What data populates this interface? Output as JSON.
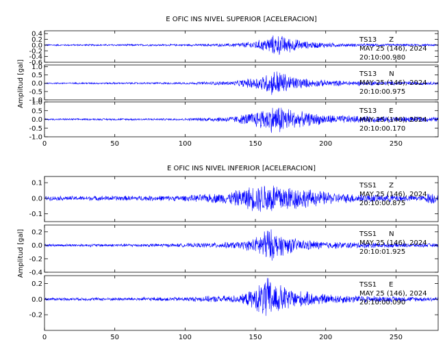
{
  "chart_data": [
    {
      "type": "line",
      "title": "E OFIC INS NIVEL SUPERIOR [ACELERACION]",
      "ylabel": "Amplitud [gal]",
      "xlabel": "",
      "xlim": [
        0,
        280
      ],
      "x_ticks": [
        "0",
        "50",
        "100",
        "150",
        "200",
        "250"
      ],
      "line_color": "#0000ff",
      "grid": false,
      "traces": [
        {
          "station": "TS13",
          "component": "Z",
          "date": "MAY 25 (146), 2024",
          "time": "20:10:00.980",
          "ylim": [
            -0.6,
            0.5
          ],
          "y_ticks": [
            "0.4",
            "0.2",
            "0.0",
            "-0.2",
            "-0.4",
            "-0.6"
          ],
          "envelope": [
            [
              0,
              0.03
            ],
            [
              100,
              0.04
            ],
            [
              130,
              0.06
            ],
            [
              145,
              0.12
            ],
            [
              155,
              0.22
            ],
            [
              165,
              0.42
            ],
            [
              172,
              0.32
            ],
            [
              185,
              0.15
            ],
            [
              210,
              0.07
            ],
            [
              240,
              0.05
            ],
            [
              280,
              0.04
            ]
          ]
        },
        {
          "station": "TS13",
          "component": "N",
          "date": "MAY 25 (146), 2024",
          "time": "20:10:00.975",
          "ylim": [
            -1.0,
            1.1
          ],
          "y_ticks": [
            "1.0",
            "0.5",
            "0.0",
            "-0.5",
            "-1.0"
          ],
          "envelope": [
            [
              0,
              0.05
            ],
            [
              100,
              0.07
            ],
            [
              135,
              0.15
            ],
            [
              150,
              0.4
            ],
            [
              160,
              0.7
            ],
            [
              165,
              0.95
            ],
            [
              175,
              0.5
            ],
            [
              190,
              0.25
            ],
            [
              220,
              0.15
            ],
            [
              260,
              0.12
            ],
            [
              280,
              0.1
            ]
          ]
        },
        {
          "station": "TS13",
          "component": "E",
          "date": "MAY 25 (146), 2024",
          "time": "20:10:00.170",
          "ylim": [
            -1.0,
            1.0
          ],
          "y_ticks": [
            "1.0",
            "0.5",
            "0.0",
            "-0.5",
            "-1.0"
          ],
          "envelope": [
            [
              0,
              0.05
            ],
            [
              100,
              0.07
            ],
            [
              135,
              0.2
            ],
            [
              150,
              0.5
            ],
            [
              160,
              0.8
            ],
            [
              168,
              0.95
            ],
            [
              180,
              0.5
            ],
            [
              200,
              0.3
            ],
            [
              230,
              0.2
            ],
            [
              280,
              0.15
            ]
          ]
        }
      ]
    },
    {
      "type": "line",
      "title": "E OFIC INS NIVEL INFERIOR [ACELERACION]",
      "ylabel": "Amplitud [gal]",
      "xlabel": "",
      "xlim": [
        0,
        280
      ],
      "x_ticks": [
        "0",
        "50",
        "100",
        "150",
        "200",
        "250"
      ],
      "line_color": "#0000ff",
      "grid": false,
      "traces": [
        {
          "station": "TSS1",
          "component": "Z",
          "date": "MAY 25 (146), 2024",
          "time": "20:10:00.875",
          "ylim": [
            -0.15,
            0.14
          ],
          "y_ticks": [
            "0.1",
            "0.0",
            "-0.1"
          ],
          "envelope": [
            [
              0,
              0.015
            ],
            [
              100,
              0.02
            ],
            [
              130,
              0.04
            ],
            [
              145,
              0.08
            ],
            [
              160,
              0.12
            ],
            [
              175,
              0.09
            ],
            [
              190,
              0.06
            ],
            [
              210,
              0.035
            ],
            [
              250,
              0.025
            ],
            [
              270,
              0.02
            ],
            [
              275,
              0.05
            ],
            [
              280,
              0.02
            ]
          ]
        },
        {
          "station": "TSS1",
          "component": "N",
          "date": "MAY 25 (146), 2024",
          "time": "20:10:01.925",
          "ylim": [
            -0.4,
            0.3
          ],
          "y_ticks": [
            "0.2",
            "0.0",
            "-0.2",
            "-0.4"
          ],
          "envelope": [
            [
              0,
              0.02
            ],
            [
              100,
              0.03
            ],
            [
              140,
              0.06
            ],
            [
              150,
              0.12
            ],
            [
              158,
              0.3
            ],
            [
              165,
              0.2
            ],
            [
              180,
              0.1
            ],
            [
              200,
              0.06
            ],
            [
              240,
              0.04
            ],
            [
              280,
              0.03
            ]
          ]
        },
        {
          "station": "TSS1",
          "component": "E",
          "date": "MAY 25 (146), 2024",
          "time": "20:10:00.090",
          "ylim": [
            -0.4,
            0.3
          ],
          "y_ticks": [
            "0.2",
            "0.0",
            "-0.2"
          ],
          "envelope": [
            [
              0,
              0.02
            ],
            [
              60,
              0.025
            ],
            [
              100,
              0.03
            ],
            [
              140,
              0.06
            ],
            [
              150,
              0.15
            ],
            [
              158,
              0.32
            ],
            [
              165,
              0.22
            ],
            [
              180,
              0.12
            ],
            [
              200,
              0.07
            ],
            [
              240,
              0.04
            ],
            [
              280,
              0.03
            ]
          ]
        }
      ]
    }
  ]
}
